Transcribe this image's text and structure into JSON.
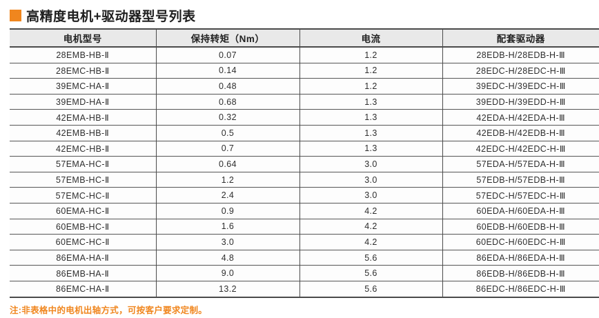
{
  "page": {
    "title": "高精度电机+驱动器型号列表",
    "note": "注:非表格中的电机出轴方式，可按客户要求定制。"
  },
  "colors": {
    "accent_orange": "#F0861E",
    "header_bg": "#E9E9E9",
    "border_dark": "#4A4A4A",
    "body_bg": "#FDFDFD",
    "text": "#2B2B2B"
  },
  "table": {
    "headers": [
      "电机型号",
      "保持转矩（Nm）",
      "电流",
      "配套驱动器"
    ],
    "rows": [
      {
        "model": "28EMB-HB-Ⅱ",
        "torque": "0.07",
        "current": "1.2",
        "driver": "28EDB-H/28EDB-H-Ⅲ"
      },
      {
        "model": "28EMC-HB-Ⅱ",
        "torque": "0.14",
        "current": "1.2",
        "driver": "28EDC-H/28EDC-H-Ⅲ"
      },
      {
        "model": "39EMC-HA-Ⅱ",
        "torque": "0.48",
        "current": "1.2",
        "driver": "39EDC-H/39EDC-H-Ⅲ"
      },
      {
        "model": "39EMD-HA-Ⅱ",
        "torque": "0.68",
        "current": "1.3",
        "driver": "39EDD-H/39EDD-H-Ⅲ"
      },
      {
        "model": "42EMA-HB-Ⅱ",
        "torque": "0.32",
        "current": "1.3",
        "driver": "42EDA-H/42EDA-H-Ⅲ"
      },
      {
        "model": "42EMB-HB-Ⅱ",
        "torque": "0.5",
        "current": "1.3",
        "driver": "42EDB-H/42EDB-H-Ⅲ"
      },
      {
        "model": "42EMC-HB-Ⅱ",
        "torque": "0.7",
        "current": "1.3",
        "driver": "42EDC-H/42EDC-H-Ⅲ"
      },
      {
        "model": "57EMA-HC-Ⅱ",
        "torque": "0.64",
        "current": "3.0",
        "driver": "57EDA-H/57EDA-H-Ⅲ"
      },
      {
        "model": "57EMB-HC-Ⅱ",
        "torque": "1.2",
        "current": "3.0",
        "driver": "57EDB-H/57EDB-H-Ⅲ"
      },
      {
        "model": "57EMC-HC-Ⅱ",
        "torque": "2.4",
        "current": "3.0",
        "driver": "57EDC-H/57EDC-H-Ⅲ"
      },
      {
        "model": "60EMA-HC-Ⅱ",
        "torque": "0.9",
        "current": "4.2",
        "driver": "60EDA-H/60EDA-H-Ⅲ"
      },
      {
        "model": "60EMB-HC-Ⅱ",
        "torque": "1.6",
        "current": "4.2",
        "driver": "60EDB-H/60EDB-H-Ⅲ"
      },
      {
        "model": "60EMC-HC-Ⅱ",
        "torque": "3.0",
        "current": "4.2",
        "driver": "60EDC-H/60EDC-H-Ⅲ"
      },
      {
        "model": "86EMA-HA-Ⅱ",
        "torque": "4.8",
        "current": "5.6",
        "driver": "86EDA-H/86EDA-H-Ⅲ"
      },
      {
        "model": "86EMB-HA-Ⅱ",
        "torque": "9.0",
        "current": "5.6",
        "driver": "86EDB-H/86EDB-H-Ⅲ"
      },
      {
        "model": "86EMC-HA-Ⅱ",
        "torque": "13.2",
        "current": "5.6",
        "driver": "86EDC-H/86EDC-H-Ⅲ"
      }
    ]
  }
}
